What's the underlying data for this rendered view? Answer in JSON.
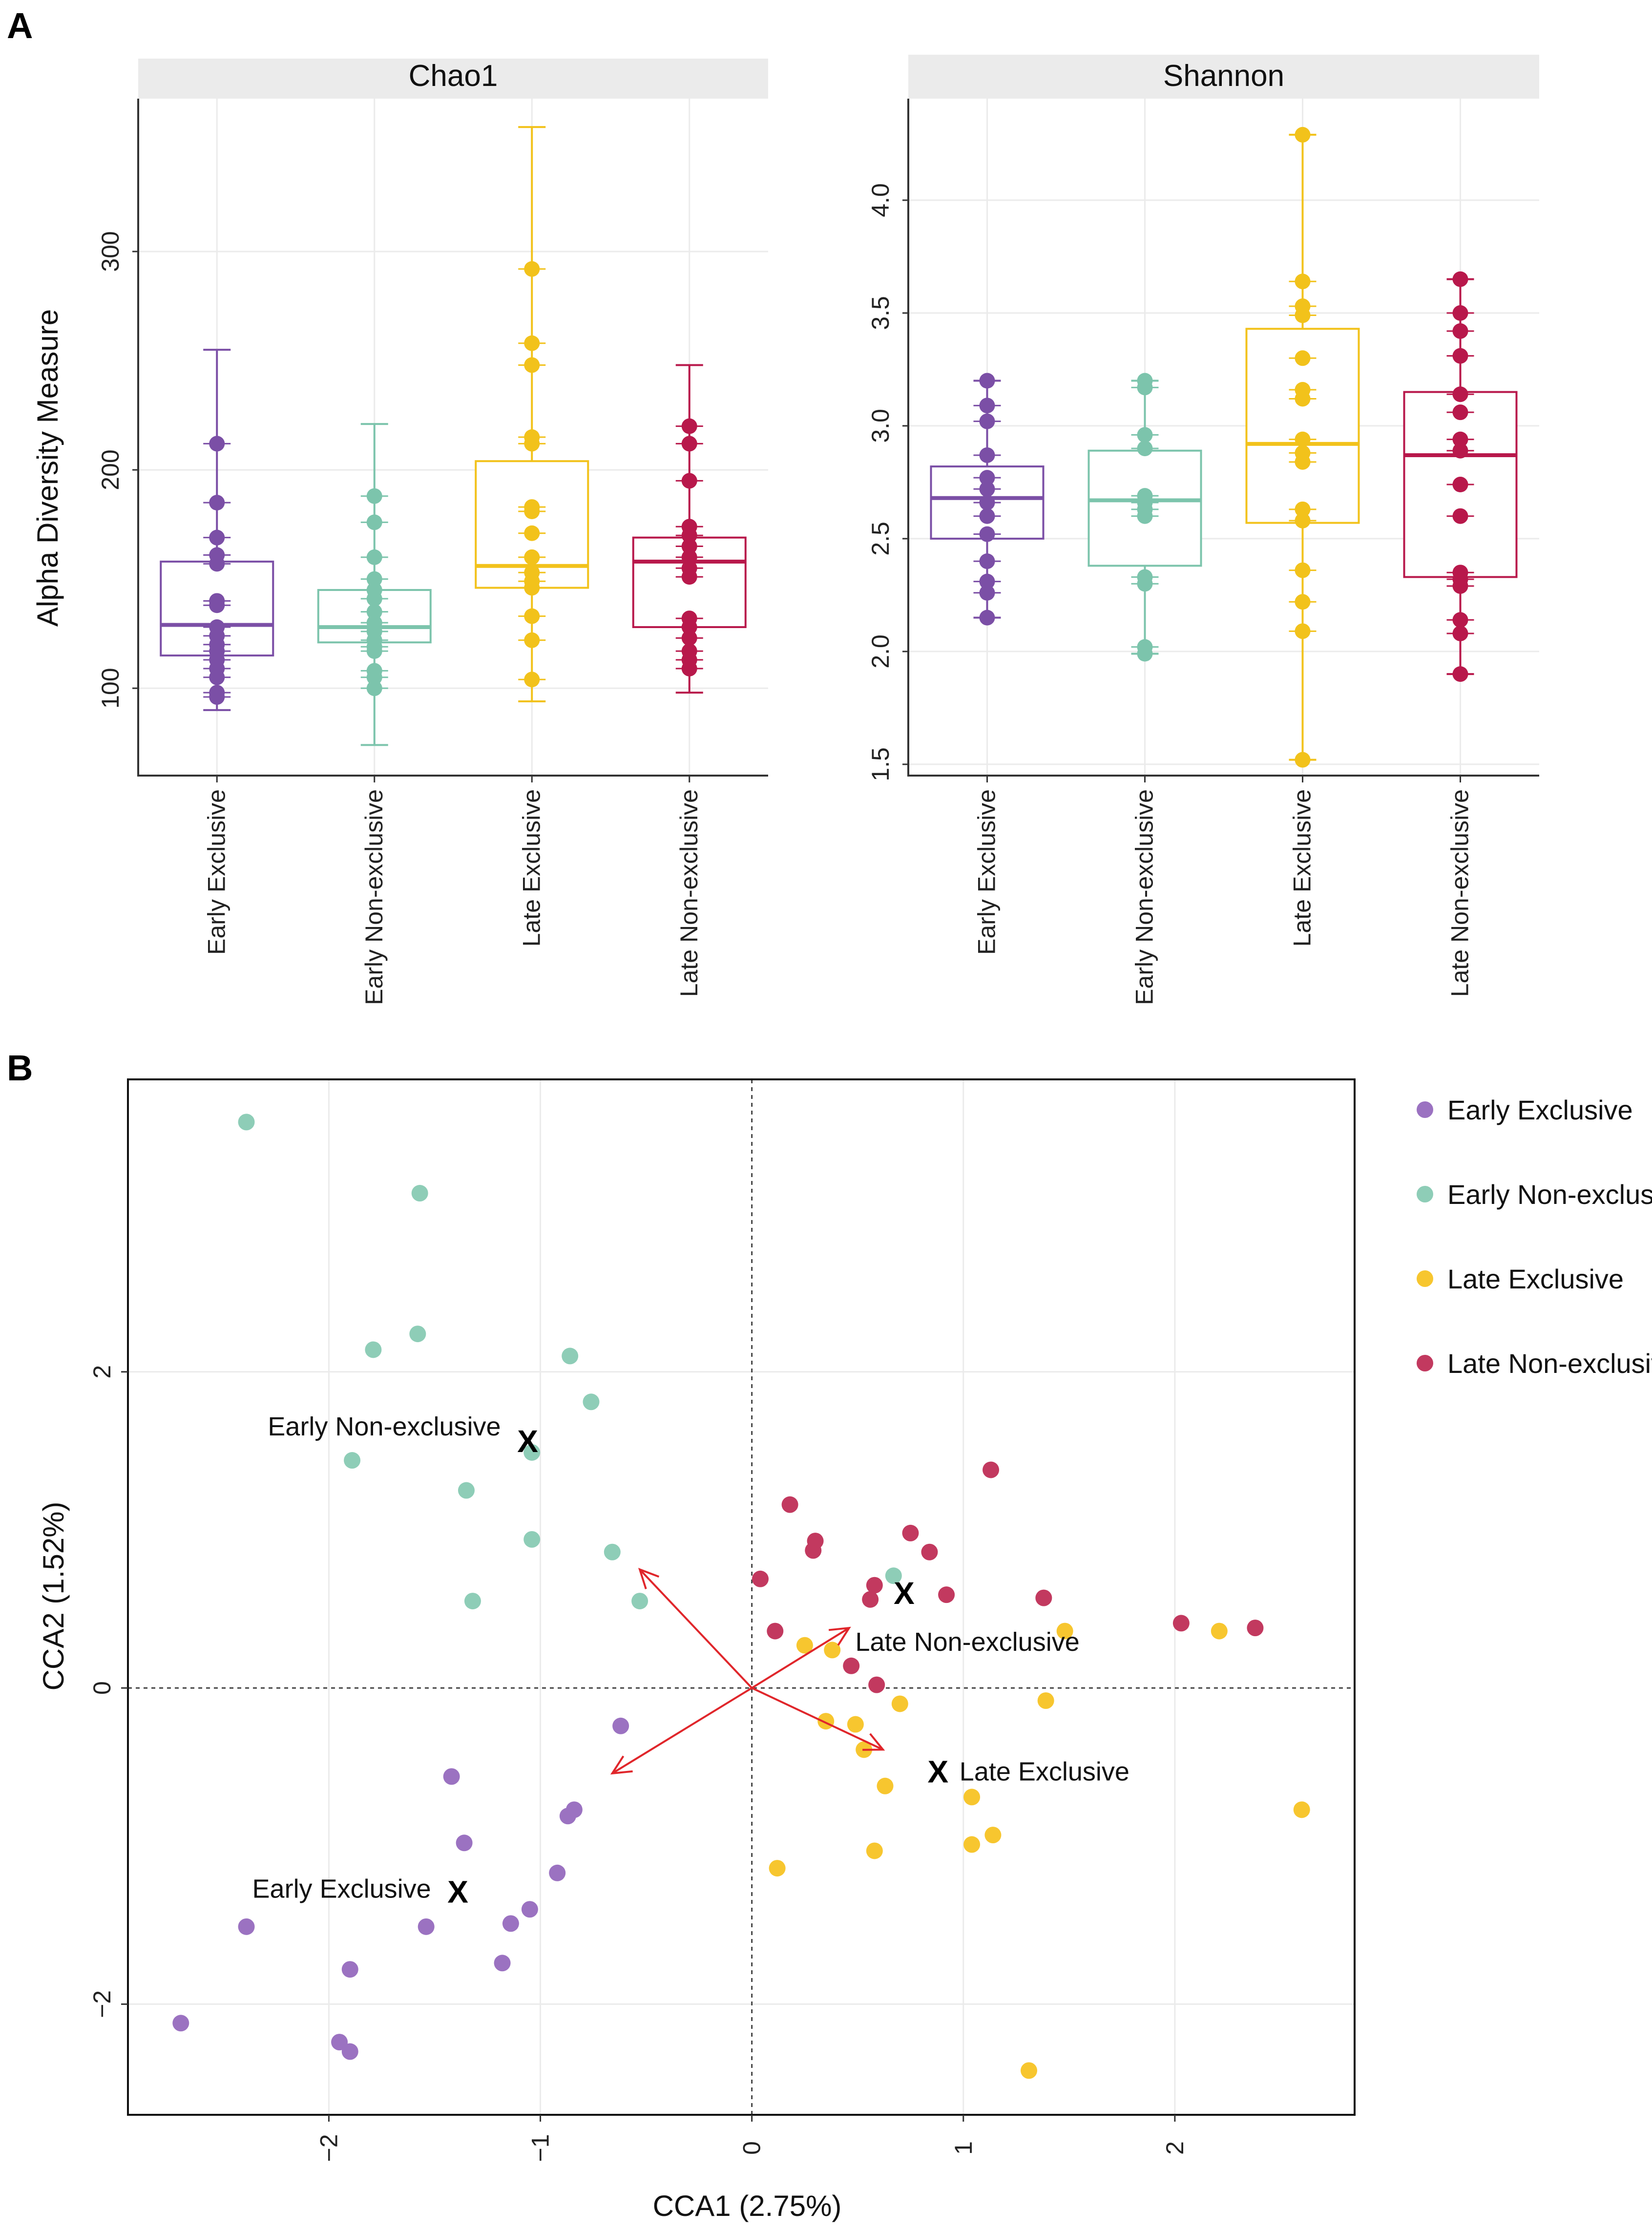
{
  "panels": {
    "a": {
      "letter": "A"
    },
    "b": {
      "letter": "B"
    }
  },
  "colors": {
    "Early Exclusive": "#7B4FA6",
    "Early Non-exclusive": "#7CC4AC",
    "Late Exclusive": "#F2C21B",
    "Late Non-exclusive": "#B8184B",
    "ordination_early_exclusive": "#9B72C1",
    "ordination_early_nonexclusive": "#8ECDB7",
    "ordination_late_exclusive": "#F7C62F",
    "ordination_late_nonexclusive": "#C2395F",
    "arrow": "#E0262B",
    "strip_bg": "#EBEBEB",
    "grid": "#EBEBEB"
  },
  "chart_data": [
    {
      "type": "box",
      "facet": "Chao1",
      "ylabel": "Alpha Diversity Measure",
      "ylim": [
        60,
        370
      ],
      "yticks": [
        100,
        200,
        300
      ],
      "categories": [
        "Early Exclusive",
        "Early Non-exclusive",
        "Late Exclusive",
        "Late Non-exclusive"
      ],
      "boxes": [
        {
          "group": "Early Exclusive",
          "q1": 115,
          "median": 129,
          "q3": 158,
          "whisker_low": 90,
          "whisker_high": 255,
          "points": [
            212,
            185,
            169,
            161,
            157,
            140,
            138,
            128,
            124,
            120,
            117,
            113,
            109,
            105,
            98,
            96
          ]
        },
        {
          "group": "Early Non-exclusive",
          "q1": 121,
          "median": 128,
          "q3": 145,
          "whisker_low": 74,
          "whisker_high": 221,
          "points": [
            188,
            176,
            160,
            150,
            145,
            141,
            135,
            130,
            126,
            122,
            119,
            117,
            108,
            105,
            100
          ]
        },
        {
          "group": "Late Exclusive",
          "q1": 146,
          "median": 156,
          "q3": 204,
          "whisker_low": 94,
          "whisker_high": 357,
          "points": [
            292,
            258,
            248,
            215,
            212,
            183,
            181,
            171,
            160,
            153,
            149,
            146,
            133,
            122,
            104
          ]
        },
        {
          "group": "Late Non-exclusive",
          "q1": 128,
          "median": 158,
          "q3": 169,
          "whisker_low": 98,
          "whisker_high": 248,
          "points": [
            220,
            212,
            195,
            174,
            170,
            165,
            160,
            155,
            151,
            132,
            128,
            123,
            117,
            113,
            109
          ]
        }
      ]
    },
    {
      "type": "box",
      "facet": "Shannon",
      "ylabel": "",
      "ylim": [
        1.45,
        4.45
      ],
      "yticks": [
        1.5,
        2.0,
        2.5,
        3.0,
        3.5,
        4.0
      ],
      "categories": [
        "Early Exclusive",
        "Early Non-exclusive",
        "Late Exclusive",
        "Late Non-exclusive"
      ],
      "boxes": [
        {
          "group": "Early Exclusive",
          "q1": 2.5,
          "median": 2.68,
          "q3": 2.82,
          "whisker_low": 2.15,
          "whisker_high": 3.2,
          "points": [
            3.2,
            3.09,
            3.02,
            2.87,
            2.77,
            2.72,
            2.66,
            2.6,
            2.52,
            2.4,
            2.31,
            2.26,
            2.15
          ]
        },
        {
          "group": "Early Non-exclusive",
          "q1": 2.38,
          "median": 2.67,
          "q3": 2.89,
          "whisker_low": 1.99,
          "whisker_high": 3.2,
          "points": [
            3.2,
            3.17,
            2.96,
            2.9,
            2.69,
            2.66,
            2.63,
            2.6,
            2.33,
            2.3,
            2.02,
            1.99
          ]
        },
        {
          "group": "Late Exclusive",
          "q1": 2.57,
          "median": 2.92,
          "q3": 3.43,
          "whisker_low": 1.52,
          "whisker_high": 4.29,
          "points": [
            4.29,
            3.64,
            3.53,
            3.49,
            3.3,
            3.16,
            3.12,
            2.94,
            2.88,
            2.84,
            2.63,
            2.58,
            2.36,
            2.22,
            2.09,
            1.52
          ]
        },
        {
          "group": "Late Non-exclusive",
          "q1": 2.33,
          "median": 2.87,
          "q3": 3.15,
          "whisker_low": 1.9,
          "whisker_high": 3.65,
          "points": [
            3.65,
            3.5,
            3.42,
            3.31,
            3.14,
            3.06,
            2.94,
            2.89,
            2.74,
            2.6,
            2.35,
            2.32,
            2.29,
            2.14,
            2.08,
            1.9
          ]
        }
      ]
    },
    {
      "type": "scatter",
      "xlabel": "CCA1 (2.75%)",
      "ylabel": "CCA2 (1.52%)",
      "xlim": [
        -2.95,
        2.85
      ],
      "ylim": [
        -2.7,
        3.85
      ],
      "xticks": [
        -2,
        -1,
        0,
        1,
        2
      ],
      "yticks": [
        -2,
        0,
        2
      ],
      "series": [
        {
          "name": "Early Exclusive",
          "colorKey": "ordination_early_exclusive",
          "points": [
            [
              -2.7,
              -2.12
            ],
            [
              -2.39,
              -1.51
            ],
            [
              -1.9,
              -1.78
            ],
            [
              -1.95,
              -2.24
            ],
            [
              -1.9,
              -2.3
            ],
            [
              -1.54,
              -1.51
            ],
            [
              -1.42,
              -0.56
            ],
            [
              -1.36,
              -0.98
            ],
            [
              -1.14,
              -1.49
            ],
            [
              -1.18,
              -1.74
            ],
            [
              -1.05,
              -1.4
            ],
            [
              -0.92,
              -1.17
            ],
            [
              -0.87,
              -0.81
            ],
            [
              -0.84,
              -0.77
            ],
            [
              -0.62,
              -0.24
            ]
          ]
        },
        {
          "name": "Early Non-exclusive",
          "colorKey": "ordination_early_nonexclusive",
          "points": [
            [
              -2.39,
              3.58
            ],
            [
              -1.57,
              3.13
            ],
            [
              -1.58,
              2.24
            ],
            [
              -1.79,
              2.14
            ],
            [
              -0.86,
              2.1
            ],
            [
              -0.76,
              1.81
            ],
            [
              -1.89,
              1.44
            ],
            [
              -1.04,
              1.49
            ],
            [
              -1.35,
              1.25
            ],
            [
              -1.04,
              0.94
            ],
            [
              -0.66,
              0.86
            ],
            [
              -1.32,
              0.55
            ],
            [
              -0.53,
              0.55
            ],
            [
              0.67,
              0.71
            ]
          ]
        },
        {
          "name": "Late Exclusive",
          "colorKey": "ordination_late_exclusive",
          "points": [
            [
              0.25,
              0.27
            ],
            [
              0.38,
              0.24
            ],
            [
              1.48,
              0.36
            ],
            [
              2.21,
              0.36
            ],
            [
              2.6,
              -0.77
            ],
            [
              0.35,
              -0.21
            ],
            [
              0.49,
              -0.23
            ],
            [
              0.53,
              -0.39
            ],
            [
              0.7,
              -0.1
            ],
            [
              1.39,
              -0.08
            ],
            [
              0.63,
              -0.62
            ],
            [
              1.04,
              -0.69
            ],
            [
              1.14,
              -0.93
            ],
            [
              1.04,
              -0.99
            ],
            [
              0.58,
              -1.03
            ],
            [
              0.12,
              -1.14
            ],
            [
              1.31,
              -2.42
            ]
          ]
        },
        {
          "name": "Late Non-exclusive",
          "colorKey": "ordination_late_nonexclusive",
          "points": [
            [
              1.13,
              1.38
            ],
            [
              0.18,
              1.16
            ],
            [
              0.3,
              0.93
            ],
            [
              0.29,
              0.87
            ],
            [
              0.75,
              0.98
            ],
            [
              0.84,
              0.86
            ],
            [
              0.04,
              0.69
            ],
            [
              0.58,
              0.65
            ],
            [
              0.56,
              0.56
            ],
            [
              0.92,
              0.59
            ],
            [
              1.38,
              0.57
            ],
            [
              0.11,
              0.36
            ],
            [
              2.03,
              0.41
            ],
            [
              2.38,
              0.38
            ],
            [
              0.47,
              0.14
            ],
            [
              0.59,
              0.02
            ]
          ]
        }
      ],
      "centroids": [
        {
          "label": "Early Non-exclusive",
          "x": -1.06,
          "y": 1.56
        },
        {
          "label": "Early Exclusive",
          "x": -1.39,
          "y": -1.29
        },
        {
          "label": "Late Non-exclusive",
          "x": 0.72,
          "y": 0.6
        },
        {
          "label": "Late Exclusive",
          "x": 0.88,
          "y": -0.53
        }
      ],
      "centroid_marker": "X",
      "arrows": [
        [
          -0.53,
          0.75
        ],
        [
          -0.66,
          -0.54
        ],
        [
          0.46,
          0.38
        ],
        [
          0.62,
          -0.39
        ]
      ],
      "legend": [
        "Early Exclusive",
        "Early Non-exclusive",
        "Late Exclusive",
        "Late Non-exclusive"
      ],
      "legend_position": "right"
    }
  ]
}
